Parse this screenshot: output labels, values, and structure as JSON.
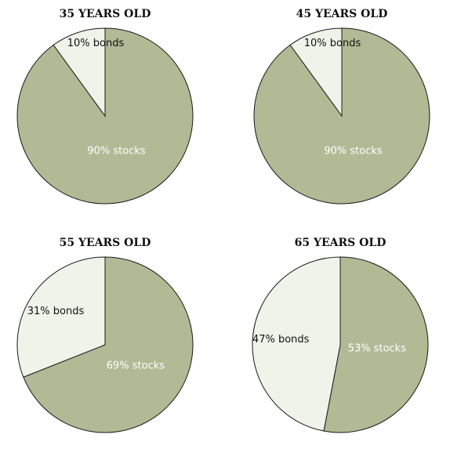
{
  "colors": {
    "stocks": "#b1b995",
    "bonds": "#f0f3ea",
    "outline": "#1a1a1a",
    "stocks_label": "#ffffff",
    "bonds_label": "#111111"
  },
  "chart_data": [
    {
      "type": "pie",
      "title": "35 YEARS OLD",
      "slices": [
        {
          "name": "stocks",
          "value": 90,
          "label": "90% stocks"
        },
        {
          "name": "bonds",
          "value": 10,
          "label": "10% bonds"
        }
      ]
    },
    {
      "type": "pie",
      "title": "45 YEARS OLD",
      "slices": [
        {
          "name": "stocks",
          "value": 90,
          "label": "90% stocks"
        },
        {
          "name": "bonds",
          "value": 10,
          "label": "10% bonds"
        }
      ]
    },
    {
      "type": "pie",
      "title": "55 YEARS OLD",
      "slices": [
        {
          "name": "stocks",
          "value": 69,
          "label": "69% stocks"
        },
        {
          "name": "bonds",
          "value": 31,
          "label": "31% bonds"
        }
      ]
    },
    {
      "type": "pie",
      "title": "65 YEARS OLD",
      "slices": [
        {
          "name": "stocks",
          "value": 53,
          "label": "53% stocks"
        },
        {
          "name": "bonds",
          "value": 47,
          "label": "47% bonds"
        }
      ]
    }
  ]
}
